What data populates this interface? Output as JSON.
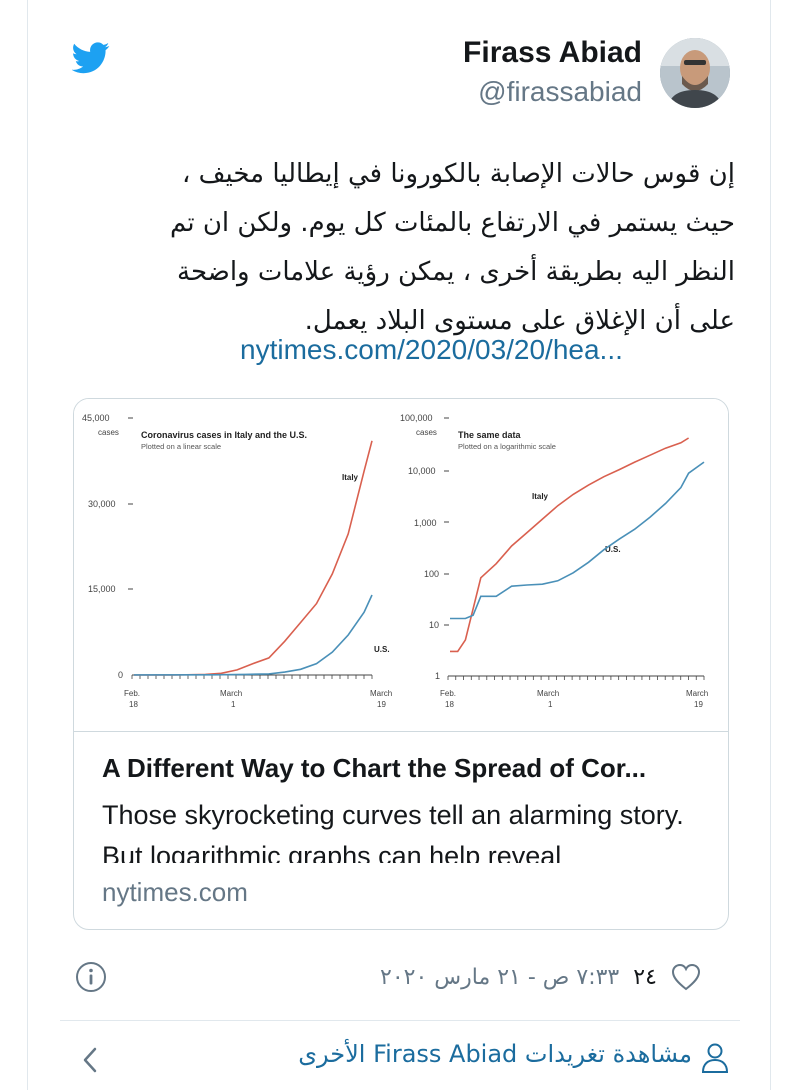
{
  "author": {
    "name": "Firass Abiad",
    "handle": "@firassabiad"
  },
  "tweet": {
    "lines": [
      "إن قوس حالات الإصابة بالكورونا في إيطاليا مخيف ،",
      "حيث يستمر في الارتفاع بالمئات كل يوم.  ولكن  ان تم",
      "النظر اليه  بطريقة أخرى ، يمكن رؤية علامات واضحة",
      "على أن الإغلاق على مستوى البلاد يعمل."
    ],
    "link": "nytimes.com/2020/03/20/hea..."
  },
  "card": {
    "title": "A Different Way to Chart the Spread of Cor...",
    "description": "Those skyrocketing curves tell an alarming story. But logarithmic graphs can help reveal",
    "domain": "nytimes.com"
  },
  "chart_data": [
    {
      "type": "line",
      "title": "Coronavirus cases in Italy and the U.S.",
      "subtitle": "Plotted on a linear scale",
      "y_ticks": [
        "45,000",
        "30,000",
        "15,000",
        "0"
      ],
      "y_unit": "cases",
      "ylim": [
        0,
        45000
      ],
      "x_ticks": [
        [
          "Feb.",
          "18"
        ],
        [
          "March",
          "1"
        ],
        [
          "March",
          "19"
        ]
      ],
      "series": [
        {
          "name": "Italy",
          "color": "#d9604f",
          "points": [
            [
              0,
              3
            ],
            [
              5,
              3
            ],
            [
              9,
              100
            ],
            [
              11,
              300
            ],
            [
              13,
              900
            ],
            [
              15,
              2000
            ],
            [
              17,
              3000
            ],
            [
              19,
              5900
            ],
            [
              21,
              9200
            ],
            [
              23,
              12500
            ],
            [
              25,
              17700
            ],
            [
              27,
              24700
            ],
            [
              29,
              35700
            ],
            [
              30,
              41000
            ]
          ]
        },
        {
          "name": "U.S.",
          "color": "#4a90b8",
          "points": [
            [
              0,
              15
            ],
            [
              10,
              30
            ],
            [
              14,
              100
            ],
            [
              17,
              200
            ],
            [
              19,
              500
            ],
            [
              21,
              1000
            ],
            [
              23,
              2000
            ],
            [
              25,
              4000
            ],
            [
              27,
              7000
            ],
            [
              29,
              11000
            ],
            [
              30,
              14000
            ]
          ]
        }
      ]
    },
    {
      "type": "line",
      "scale": "log",
      "title": "The same data",
      "subtitle": "Plotted on a logarithmic scale",
      "y_ticks": [
        "100,000",
        "10,000",
        "1,000",
        "100",
        "10",
        "1"
      ],
      "y_unit": "cases",
      "ylim": [
        1,
        100000
      ],
      "x_ticks": [
        [
          "Feb.",
          "18"
        ],
        [
          "March",
          "1"
        ],
        [
          "March",
          "19"
        ]
      ],
      "series": [
        {
          "name": "Italy",
          "color": "#d9604f",
          "points": [
            [
              0,
              3
            ],
            [
              1,
              3
            ],
            [
              2,
              5
            ],
            [
              4,
              80
            ],
            [
              6,
              150
            ],
            [
              8,
              330
            ],
            [
              10,
              600
            ],
            [
              12,
              1100
            ],
            [
              14,
              2000
            ],
            [
              16,
              3300
            ],
            [
              18,
              5000
            ],
            [
              20,
              7300
            ],
            [
              22,
              10000
            ],
            [
              24,
              14000
            ],
            [
              26,
              19000
            ],
            [
              28,
              26000
            ],
            [
              30,
              33000
            ],
            [
              31,
              41000
            ]
          ]
        },
        {
          "name": "U.S.",
          "color": "#4a90b8",
          "points": [
            [
              0,
              13
            ],
            [
              2,
              13
            ],
            [
              3,
              15
            ],
            [
              4,
              35
            ],
            [
              6,
              35
            ],
            [
              8,
              55
            ],
            [
              10,
              58
            ],
            [
              12,
              60
            ],
            [
              14,
              70
            ],
            [
              16,
              100
            ],
            [
              18,
              160
            ],
            [
              20,
              280
            ],
            [
              22,
              450
            ],
            [
              24,
              700
            ],
            [
              26,
              1200
            ],
            [
              28,
              2200
            ],
            [
              30,
              4500
            ],
            [
              31,
              8500
            ],
            [
              33,
              14000
            ]
          ]
        }
      ]
    }
  ],
  "meta": {
    "likes": "٢٤",
    "timestamp": "٧:٣٣ ص - ٢١ مارس ٢٠٢٠"
  },
  "footer": {
    "view_more": "مشاهدة تغريدات Firass Abiad الأخرى"
  },
  "colors": {
    "brand": "#1da1f2",
    "link": "#1b6c9e",
    "secondary": "#657786"
  }
}
